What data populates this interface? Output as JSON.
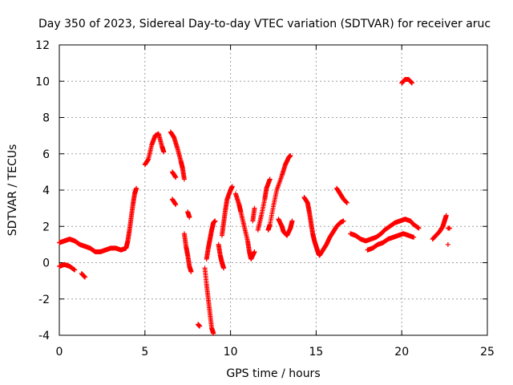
{
  "chart_data": {
    "type": "scatter",
    "title": "Day 350 of 2023, Sidereal Day-to-day VTEC variation (SDTVAR) for receiver aruc",
    "xlabel": "GPS time / hours",
    "ylabel": "SDTVAR / TECUs",
    "xlim": [
      0,
      25
    ],
    "ylim": [
      -4,
      12
    ],
    "xticks": [
      "0",
      "5",
      "10",
      "15",
      "20",
      "25"
    ],
    "yticks": [
      "-4",
      "-2",
      "0",
      "2",
      "4",
      "6",
      "8",
      "10",
      "12"
    ],
    "grid": true,
    "marker": "+",
    "series_color": "#ff0000",
    "series": [
      {
        "name": "SDTVAR",
        "segments": [
          [
            [
              0.0,
              1.1
            ],
            [
              0.3,
              1.2
            ],
            [
              0.6,
              1.3
            ],
            [
              0.9,
              1.2
            ],
            [
              1.2,
              1.0
            ],
            [
              1.5,
              0.9
            ],
            [
              1.8,
              0.8
            ],
            [
              2.1,
              0.6
            ],
            [
              2.4,
              0.6
            ],
            [
              2.7,
              0.7
            ],
            [
              3.0,
              0.8
            ],
            [
              3.3,
              0.8
            ],
            [
              3.6,
              0.7
            ],
            [
              3.9,
              0.8
            ],
            [
              4.0,
              1.2
            ],
            [
              4.1,
              1.8
            ],
            [
              4.2,
              2.5
            ],
            [
              4.3,
              3.2
            ],
            [
              4.4,
              3.8
            ],
            [
              4.5,
              4.1
            ]
          ],
          [
            [
              0.0,
              -0.2
            ],
            [
              0.3,
              -0.1
            ],
            [
              0.6,
              -0.2
            ],
            [
              0.9,
              -0.4
            ]
          ],
          [
            [
              1.3,
              -0.6
            ],
            [
              1.5,
              -0.8
            ]
          ],
          [
            [
              5.0,
              5.4
            ],
            [
              5.2,
              5.7
            ],
            [
              5.4,
              6.5
            ],
            [
              5.6,
              7.0
            ],
            [
              5.8,
              7.1
            ],
            [
              6.0,
              6.4
            ],
            [
              6.1,
              6.1
            ]
          ],
          [
            [
              6.5,
              7.2
            ],
            [
              6.7,
              6.9
            ],
            [
              6.9,
              6.3
            ],
            [
              7.1,
              5.6
            ],
            [
              7.2,
              5.2
            ],
            [
              7.3,
              4.6
            ]
          ],
          [
            [
              6.6,
              5.0
            ],
            [
              6.8,
              4.7
            ]
          ],
          [
            [
              6.6,
              3.5
            ],
            [
              6.8,
              3.2
            ]
          ],
          [
            [
              7.5,
              2.8
            ],
            [
              7.6,
              2.5
            ]
          ],
          [
            [
              7.3,
              1.6
            ],
            [
              7.4,
              0.9
            ],
            [
              7.5,
              0.4
            ],
            [
              7.6,
              -0.2
            ],
            [
              7.7,
              -0.5
            ]
          ],
          [
            [
              8.1,
              -3.4
            ],
            [
              8.2,
              -3.5
            ]
          ],
          [
            [
              8.5,
              -0.3
            ],
            [
              8.6,
              -1.2
            ],
            [
              8.7,
              -2.0
            ],
            [
              8.8,
              -2.8
            ],
            [
              8.9,
              -3.6
            ],
            [
              9.0,
              -3.9
            ]
          ],
          [
            [
              8.6,
              0.2
            ],
            [
              8.7,
              0.8
            ],
            [
              8.8,
              1.3
            ],
            [
              8.9,
              1.8
            ],
            [
              9.0,
              2.2
            ],
            [
              9.1,
              2.3
            ]
          ],
          [
            [
              9.3,
              1.0
            ],
            [
              9.4,
              0.4
            ],
            [
              9.5,
              0.0
            ],
            [
              9.6,
              -0.3
            ]
          ],
          [
            [
              9.5,
              1.5
            ],
            [
              9.6,
              2.2
            ],
            [
              9.7,
              2.9
            ],
            [
              9.8,
              3.5
            ],
            [
              10.0,
              4.0
            ],
            [
              10.1,
              4.2
            ]
          ],
          [
            [
              10.3,
              3.8
            ],
            [
              10.5,
              3.2
            ],
            [
              10.6,
              2.8
            ],
            [
              10.8,
              2.0
            ],
            [
              11.0,
              1.2
            ],
            [
              11.1,
              0.6
            ],
            [
              11.2,
              0.2
            ],
            [
              11.4,
              0.6
            ]
          ],
          [
            [
              11.3,
              2.3
            ],
            [
              11.4,
              3.0
            ]
          ],
          [
            [
              11.6,
              1.8
            ],
            [
              11.8,
              2.6
            ],
            [
              12.0,
              3.5
            ],
            [
              12.1,
              4.1
            ],
            [
              12.3,
              4.6
            ]
          ],
          [
            [
              12.2,
              1.8
            ],
            [
              12.3,
              2.1
            ],
            [
              12.5,
              3.1
            ],
            [
              12.7,
              4.0
            ],
            [
              13.0,
              4.8
            ],
            [
              13.2,
              5.4
            ],
            [
              13.4,
              5.8
            ],
            [
              13.5,
              5.9
            ]
          ],
          [
            [
              12.8,
              2.4
            ],
            [
              13.0,
              2.0
            ],
            [
              13.1,
              1.7
            ],
            [
              13.3,
              1.5
            ],
            [
              13.5,
              1.9
            ],
            [
              13.6,
              2.3
            ]
          ],
          [
            [
              14.3,
              3.6
            ],
            [
              14.5,
              3.3
            ],
            [
              14.6,
              2.8
            ],
            [
              14.7,
              2.2
            ],
            [
              14.8,
              1.6
            ],
            [
              14.9,
              1.2
            ],
            [
              15.0,
              0.9
            ],
            [
              15.1,
              0.6
            ],
            [
              15.2,
              0.4
            ],
            [
              15.4,
              0.7
            ],
            [
              15.6,
              1.0
            ],
            [
              15.8,
              1.4
            ],
            [
              16.0,
              1.7
            ],
            [
              16.2,
              2.0
            ],
            [
              16.4,
              2.2
            ],
            [
              16.6,
              2.3
            ]
          ],
          [
            [
              16.2,
              4.1
            ],
            [
              16.4,
              3.8
            ],
            [
              16.6,
              3.5
            ],
            [
              16.8,
              3.3
            ]
          ],
          [
            [
              17.0,
              1.6
            ],
            [
              17.3,
              1.5
            ],
            [
              17.6,
              1.3
            ],
            [
              17.9,
              1.2
            ],
            [
              18.2,
              1.3
            ],
            [
              18.5,
              1.4
            ],
            [
              18.8,
              1.6
            ],
            [
              19.0,
              1.8
            ],
            [
              19.3,
              2.0
            ],
            [
              19.6,
              2.2
            ],
            [
              19.9,
              2.3
            ],
            [
              20.2,
              2.4
            ],
            [
              20.5,
              2.3
            ],
            [
              20.7,
              2.1
            ],
            [
              21.0,
              1.9
            ]
          ],
          [
            [
              18.0,
              0.7
            ],
            [
              18.3,
              0.8
            ],
            [
              18.6,
              1.0
            ],
            [
              18.9,
              1.1
            ],
            [
              19.2,
              1.3
            ],
            [
              19.5,
              1.4
            ],
            [
              19.8,
              1.5
            ],
            [
              20.1,
              1.6
            ],
            [
              20.4,
              1.5
            ],
            [
              20.7,
              1.4
            ]
          ],
          [
            [
              21.8,
              1.3
            ],
            [
              22.0,
              1.5
            ],
            [
              22.2,
              1.7
            ],
            [
              22.4,
              2.0
            ],
            [
              22.5,
              2.3
            ],
            [
              22.6,
              2.6
            ]
          ],
          [
            [
              22.7,
              1.9
            ],
            [
              22.8,
              1.9
            ]
          ],
          [
            [
              22.7,
              1.0
            ]
          ],
          [
            [
              20.0,
              9.9
            ],
            [
              20.2,
              10.1
            ],
            [
              20.4,
              10.1
            ],
            [
              20.6,
              9.9
            ]
          ]
        ]
      }
    ]
  }
}
